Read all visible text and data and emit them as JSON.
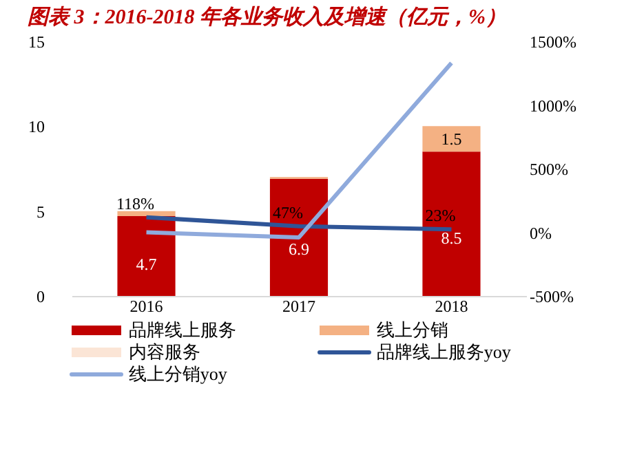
{
  "chart_data": {
    "type": "bar",
    "title": "图表 3：2016-2018 年各业务收入及增速（亿元，%）",
    "categories": [
      "2016",
      "2017",
      "2018"
    ],
    "stacked": true,
    "legend": "bottom",
    "ylim": [
      0,
      15
    ],
    "yticks": [
      0,
      5,
      10,
      15
    ],
    "y2lim": [
      -500,
      1500
    ],
    "y2ticks": [
      {
        "value": -500,
        "label": "-500%"
      },
      {
        "value": 0,
        "label": "0%"
      },
      {
        "value": 500,
        "label": "500%"
      },
      {
        "value": 1000,
        "label": "1000%"
      },
      {
        "value": 1500,
        "label": "1500%"
      }
    ],
    "series": [
      {
        "name": "品牌线上服务",
        "color": "#c00000",
        "values": [
          4.7,
          6.9,
          8.5
        ],
        "value_labels": [
          "4.7",
          "6.9",
          "8.5"
        ]
      },
      {
        "name": "线上分销",
        "color": "#f4b183",
        "values": [
          0.3,
          0.1,
          1.5
        ],
        "value_labels": [
          null,
          null,
          "1.5"
        ]
      },
      {
        "name": "内容服务",
        "color": "#fbe5d6",
        "values": [
          0,
          0,
          0
        ]
      },
      {
        "name": "品牌线上服务yoy",
        "color": "#2f5597",
        "type": "line",
        "axis": "y2",
        "values": [
          118,
          47,
          23
        ],
        "value_labels": [
          "118%",
          "47%",
          "23%"
        ]
      },
      {
        "name": "线上分销yoy",
        "color": "#8faadc",
        "type": "line",
        "axis": "y2",
        "values": [
          0,
          -40,
          1330
        ]
      }
    ]
  }
}
